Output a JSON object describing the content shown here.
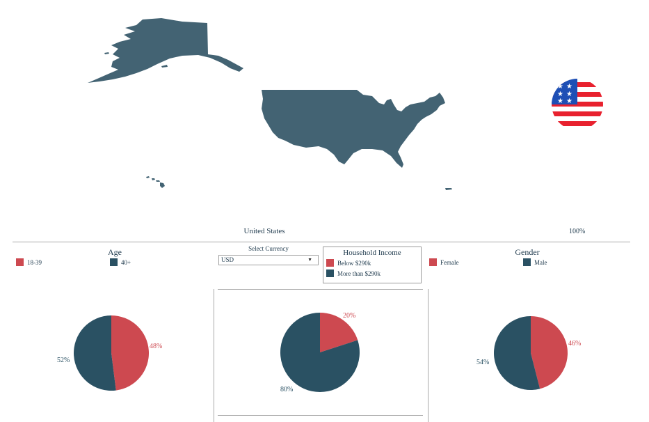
{
  "map": {
    "fill_color": "#436373",
    "country_label": "United States",
    "percent_label": "100%",
    "flag_icon": "usa-flag-icon"
  },
  "colors": {
    "red": "#cd4950",
    "navy": "#2a5163"
  },
  "age": {
    "title": "Age",
    "legend": [
      {
        "label": "18-39",
        "color": "#cd4950"
      },
      {
        "label": "40+",
        "color": "#2a5163"
      }
    ],
    "slices": [
      {
        "label": "18-39",
        "value": 48,
        "text": "48%",
        "color": "#cd4950"
      },
      {
        "label": "40+",
        "value": 52,
        "text": "52%",
        "color": "#2a5163"
      }
    ]
  },
  "currency": {
    "label": "Select Currency",
    "selected": "USD"
  },
  "income": {
    "title": "Household Income",
    "legend": [
      {
        "label": "Below $290k",
        "color": "#cd4950"
      },
      {
        "label": "More than $290k",
        "color": "#2a5163"
      }
    ],
    "slices": [
      {
        "label": "Below $290k",
        "value": 20,
        "text": "20%",
        "color": "#cd4950"
      },
      {
        "label": "More than $290k",
        "value": 80,
        "text": "80%",
        "color": "#2a5163"
      }
    ]
  },
  "gender": {
    "title": "Gender",
    "legend": [
      {
        "label": "Female",
        "color": "#cd4950"
      },
      {
        "label": "Male",
        "color": "#2a5163"
      }
    ],
    "slices": [
      {
        "label": "Female",
        "value": 46,
        "text": "46%",
        "color": "#cd4950"
      },
      {
        "label": "Male",
        "value": 54,
        "text": "54%",
        "color": "#2a5163"
      }
    ]
  },
  "chart_data": [
    {
      "type": "pie",
      "title": "Age",
      "categories": [
        "18-39",
        "40+"
      ],
      "values": [
        48,
        52
      ]
    },
    {
      "type": "pie",
      "title": "Household Income",
      "categories": [
        "Below $290k",
        "More than $290k"
      ],
      "values": [
        20,
        80
      ]
    },
    {
      "type": "pie",
      "title": "Gender",
      "categories": [
        "Female",
        "Male"
      ],
      "values": [
        46,
        54
      ]
    }
  ]
}
